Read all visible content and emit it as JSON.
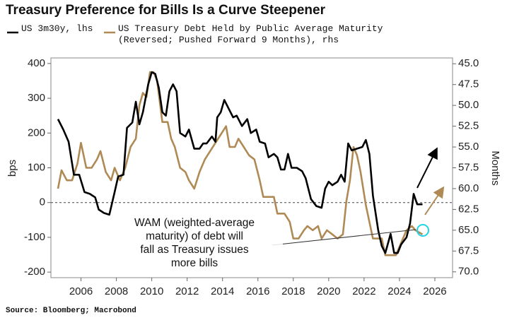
{
  "chart_data": {
    "type": "line",
    "title": "Treasury Preference for Bills Is a Curve Steepener",
    "y_label": "bps",
    "y2_label": "Months",
    "source": "Source: Bloomberg; Macrobond",
    "annotation": "WAM (weighted-average\nmaturity) of debt will\nfall as Treasury issues\nmore bills",
    "xlim": [
      2004.3,
      2027.0
    ],
    "xticks": [
      2006,
      2008,
      2010,
      2012,
      2014,
      2016,
      2018,
      2020,
      2022,
      2024,
      2026
    ],
    "ylim": [
      -216,
      416
    ],
    "yticks": [
      -200,
      -100,
      0,
      100,
      200,
      300,
      400
    ],
    "y2lim": [
      70.7,
      44.3
    ],
    "y2ticks": [
      {
        "value": 45,
        "label": "45.0"
      },
      47.5,
      {
        "value": 50,
        "label": "50.0"
      },
      52.5,
      {
        "value": 55,
        "label": "55.0"
      },
      57.5,
      {
        "value": 60,
        "label": "60.0"
      },
      62.5,
      {
        "value": 65,
        "label": "65.0"
      },
      67.5,
      {
        "value": 70,
        "label": "70.0"
      }
    ],
    "series": [
      {
        "name": "US 3m30y, lhs",
        "color": "#000000",
        "axis": "y",
        "x": [
          2004.7,
          2005.0,
          2005.3,
          2005.6,
          2005.9,
          2006.2,
          2006.5,
          2006.8,
          2007.0,
          2007.3,
          2007.6,
          2007.9,
          2008.1,
          2008.4,
          2008.6,
          2008.9,
          2009.1,
          2009.3,
          2009.5,
          2009.8,
          2010.0,
          2010.2,
          2010.4,
          2010.6,
          2010.8,
          2011.0,
          2011.2,
          2011.4,
          2011.6,
          2011.9,
          2012.1,
          2012.4,
          2012.7,
          2012.9,
          2013.1,
          2013.4,
          2013.6,
          2013.7,
          2013.9,
          2014.1,
          2014.4,
          2014.6,
          2014.8,
          2015.1,
          2015.4,
          2015.6,
          2015.9,
          2016.1,
          2016.4,
          2016.6,
          2016.9,
          2017.1,
          2017.3,
          2017.5,
          2017.7,
          2017.9,
          2018.2,
          2018.5,
          2018.7,
          2019.0,
          2019.3,
          2019.6,
          2019.8,
          2020.0,
          2020.2,
          2020.5,
          2020.7,
          2020.9,
          2021.1,
          2021.3,
          2021.6,
          2021.9,
          2022.1,
          2022.3,
          2022.5,
          2022.8,
          2023.0,
          2023.2,
          2023.5,
          2023.7,
          2023.9,
          2024.1,
          2024.4,
          2024.6,
          2024.8,
          2025.0,
          2025.3
        ],
        "values": [
          240,
          210,
          175,
          80,
          80,
          30,
          25,
          15,
          -20,
          -30,
          -35,
          30,
          75,
          80,
          215,
          230,
          290,
          225,
          260,
          340,
          375,
          370,
          330,
          260,
          250,
          320,
          340,
          320,
          200,
          190,
          210,
          155,
          155,
          170,
          170,
          190,
          175,
          245,
          260,
          295,
          265,
          245,
          250,
          220,
          240,
          200,
          210,
          175,
          170,
          130,
          140,
          130,
          95,
          95,
          140,
          100,
          100,
          90,
          70,
          10,
          -10,
          -15,
          40,
          60,
          50,
          60,
          80,
          60,
          170,
          150,
          155,
          160,
          180,
          140,
          20,
          -80,
          -125,
          -145,
          -90,
          -145,
          -145,
          -120,
          -100,
          -60,
          25,
          -5,
          -5
        ]
      },
      {
        "name": "US Treasury Debt Held by Public Average Maturity\n(Reversed; Pushed Forward 9 Months), rhs",
        "color": "#b08a55",
        "axis": "y2",
        "x": [
          2004.7,
          2004.9,
          2005.2,
          2005.5,
          2005.8,
          2006.0,
          2006.3,
          2006.6,
          2006.9,
          2007.1,
          2007.4,
          2007.7,
          2007.9,
          2008.2,
          2008.5,
          2008.8,
          2009.1,
          2009.3,
          2009.5,
          2009.7,
          2009.9,
          2010.1,
          2010.3,
          2010.6,
          2010.9,
          2011.1,
          2011.3,
          2011.6,
          2011.9,
          2012.1,
          2012.4,
          2012.7,
          2013.0,
          2013.3,
          2013.6,
          2013.9,
          2014.2,
          2014.4,
          2014.7,
          2014.9,
          2015.2,
          2015.5,
          2015.8,
          2016.1,
          2016.3,
          2016.6,
          2016.9,
          2017.1,
          2017.5,
          2017.8,
          2018.0,
          2018.3,
          2018.6,
          2018.8,
          2019.1,
          2019.4,
          2019.6,
          2019.9,
          2020.2,
          2020.5,
          2020.8,
          2021.0,
          2021.2,
          2021.4,
          2021.6,
          2021.8,
          2022.1,
          2022.3,
          2022.5,
          2022.8,
          2023.0,
          2023.2,
          2023.5,
          2023.8,
          2024.1,
          2024.4,
          2024.7,
          2024.9,
          2025.3
        ],
        "values": [
          60,
          57.8,
          59,
          59,
          57,
          54.5,
          57.5,
          57.5,
          56.5,
          55.5,
          58,
          59,
          57.5,
          59,
          57.5,
          55,
          54,
          50,
          48.5,
          49,
          46,
          46,
          47,
          52,
          52,
          54,
          55,
          57.5,
          58,
          59,
          60,
          58,
          56.5,
          55.5,
          54.5,
          53.5,
          52.5,
          55,
          55,
          54,
          55,
          56,
          56.5,
          59,
          61,
          61,
          61,
          63,
          63,
          64,
          66,
          66,
          65,
          64.5,
          65,
          64.5,
          66,
          65,
          65.5,
          66,
          65.5,
          61.5,
          59,
          55,
          56,
          58,
          62,
          64,
          66,
          66,
          66,
          68,
          68,
          68,
          66.5,
          65,
          64.5,
          65,
          65.5
        ]
      }
    ]
  }
}
